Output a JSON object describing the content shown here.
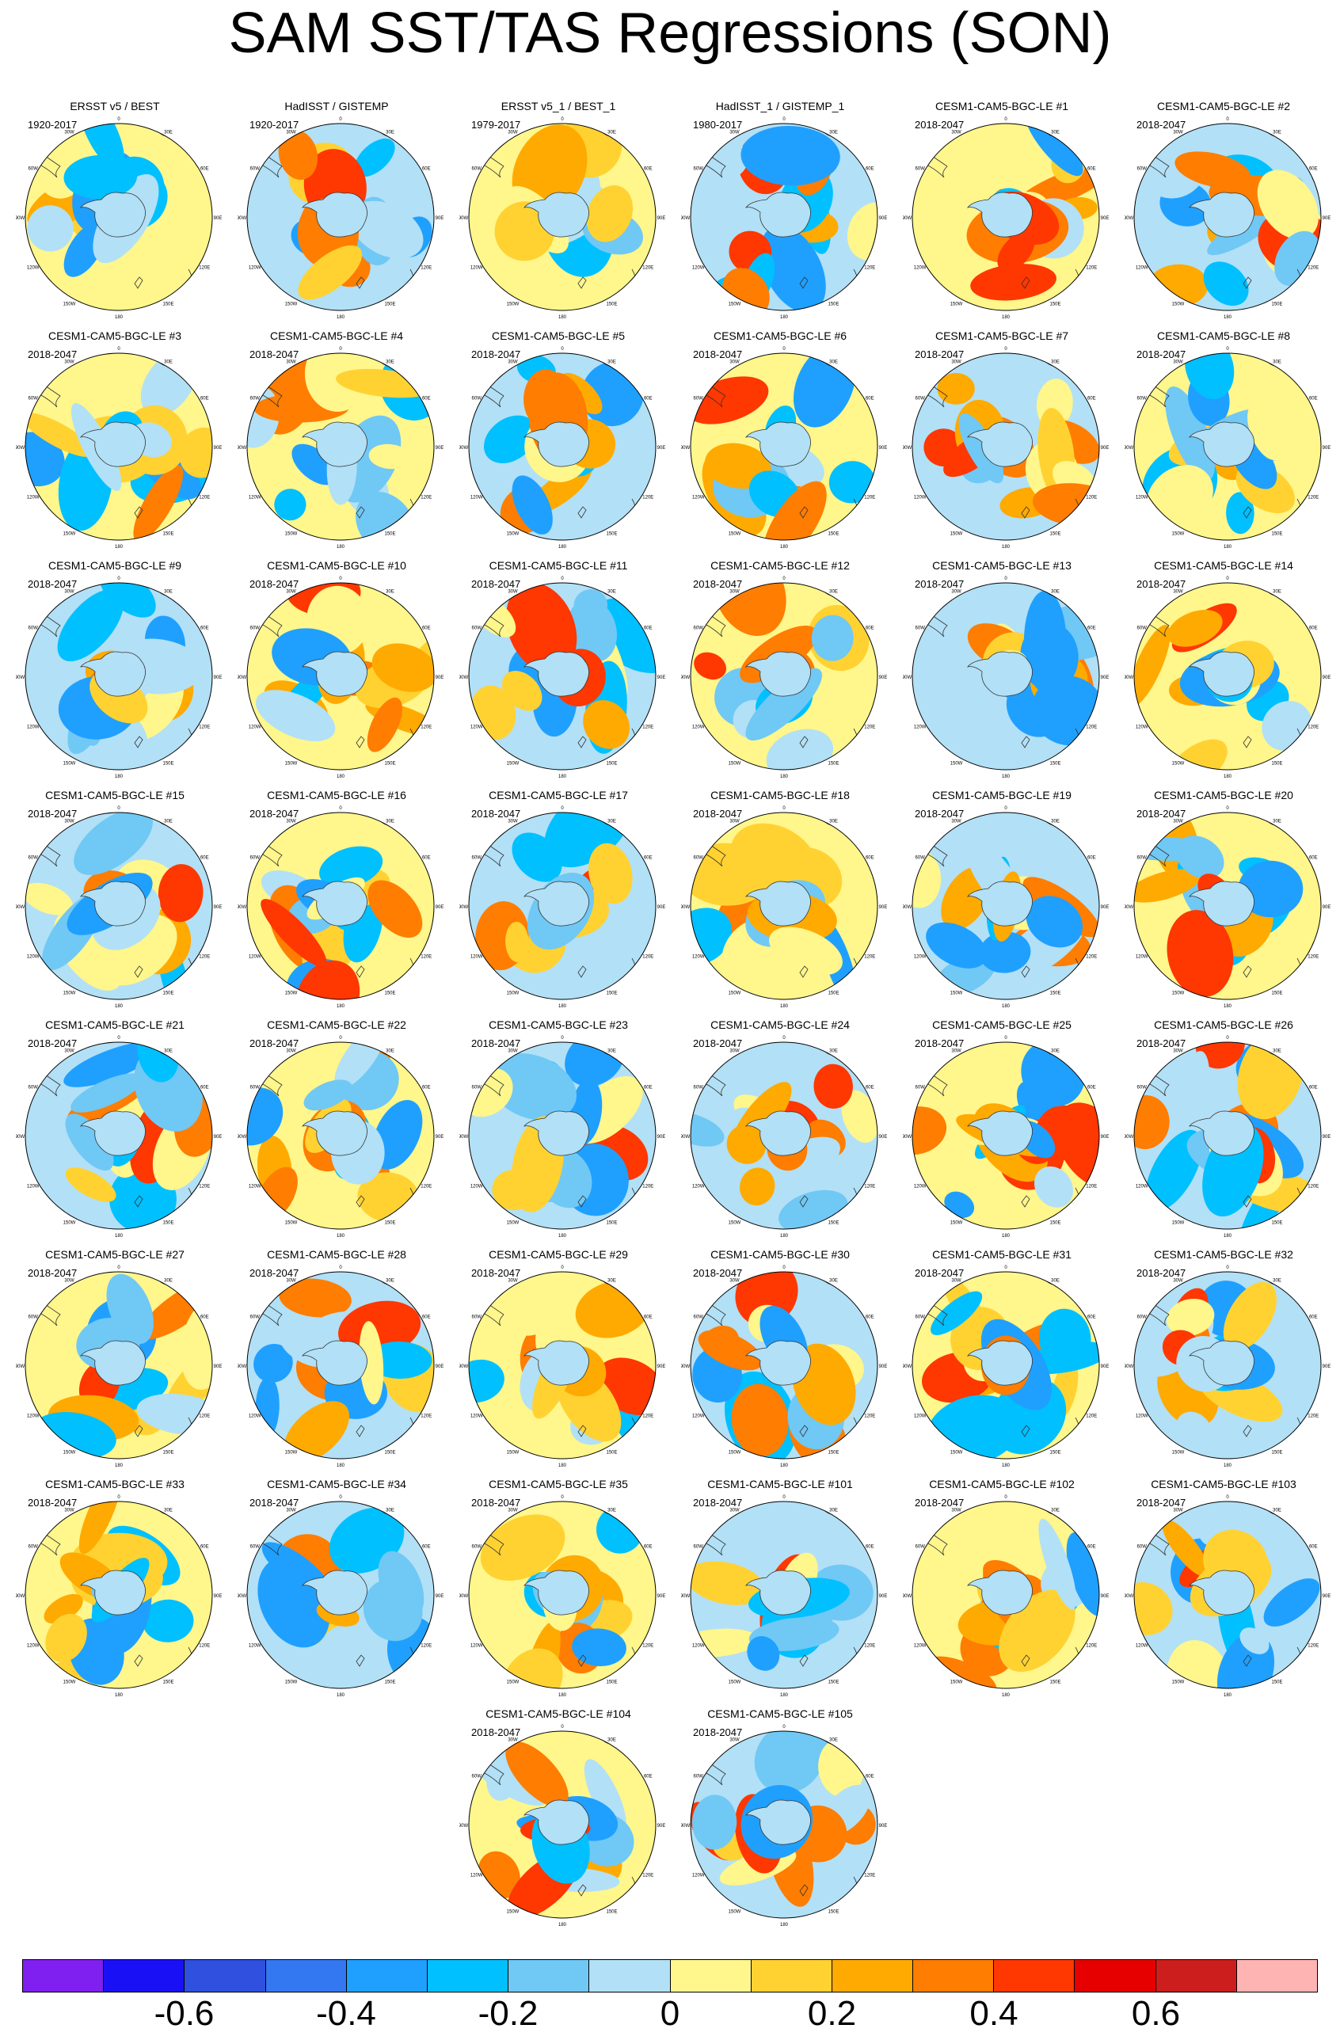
{
  "title": "SAM SST/TAS Regressions (SON)",
  "longitude_labels": [
    "0",
    "30E",
    "60E",
    "90E",
    "120E",
    "150E",
    "180",
    "150W",
    "120W",
    "90W",
    "60W",
    "30W"
  ],
  "panels": [
    {
      "title": "ERSST v5 / BEST",
      "period": "1920-2017"
    },
    {
      "title": "HadISST / GISTEMP",
      "period": "1920-2017"
    },
    {
      "title": "ERSST v5_1 / BEST_1",
      "period": "1979-2017"
    },
    {
      "title": "HadISST_1 / GISTEMP_1",
      "period": "1980-2017"
    },
    {
      "title": "CESM1-CAM5-BGC-LE #1",
      "period": "2018-2047"
    },
    {
      "title": "CESM1-CAM5-BGC-LE #2",
      "period": "2018-2047"
    },
    {
      "title": "CESM1-CAM5-BGC-LE #3",
      "period": "2018-2047"
    },
    {
      "title": "CESM1-CAM5-BGC-LE #4",
      "period": "2018-2047"
    },
    {
      "title": "CESM1-CAM5-BGC-LE #5",
      "period": "2018-2047"
    },
    {
      "title": "CESM1-CAM5-BGC-LE #6",
      "period": "2018-2047"
    },
    {
      "title": "CESM1-CAM5-BGC-LE #7",
      "period": "2018-2047"
    },
    {
      "title": "CESM1-CAM5-BGC-LE #8",
      "period": "2018-2047"
    },
    {
      "title": "CESM1-CAM5-BGC-LE #9",
      "period": "2018-2047"
    },
    {
      "title": "CESM1-CAM5-BGC-LE #10",
      "period": "2018-2047"
    },
    {
      "title": "CESM1-CAM5-BGC-LE #11",
      "period": "2018-2047"
    },
    {
      "title": "CESM1-CAM5-BGC-LE #12",
      "period": "2018-2047"
    },
    {
      "title": "CESM1-CAM5-BGC-LE #13",
      "period": "2018-2047"
    },
    {
      "title": "CESM1-CAM5-BGC-LE #14",
      "period": "2018-2047"
    },
    {
      "title": "CESM1-CAM5-BGC-LE #15",
      "period": "2018-2047"
    },
    {
      "title": "CESM1-CAM5-BGC-LE #16",
      "period": "2018-2047"
    },
    {
      "title": "CESM1-CAM5-BGC-LE #17",
      "period": "2018-2047"
    },
    {
      "title": "CESM1-CAM5-BGC-LE #18",
      "period": "2018-2047"
    },
    {
      "title": "CESM1-CAM5-BGC-LE #19",
      "period": "2018-2047"
    },
    {
      "title": "CESM1-CAM5-BGC-LE #20",
      "period": "2018-2047"
    },
    {
      "title": "CESM1-CAM5-BGC-LE #21",
      "period": "2018-2047"
    },
    {
      "title": "CESM1-CAM5-BGC-LE #22",
      "period": "2018-2047"
    },
    {
      "title": "CESM1-CAM5-BGC-LE #23",
      "period": "2018-2047"
    },
    {
      "title": "CESM1-CAM5-BGC-LE #24",
      "period": "2018-2047"
    },
    {
      "title": "CESM1-CAM5-BGC-LE #25",
      "period": "2018-2047"
    },
    {
      "title": "CESM1-CAM5-BGC-LE #26",
      "period": "2018-2047"
    },
    {
      "title": "CESM1-CAM5-BGC-LE #27",
      "period": "2018-2047"
    },
    {
      "title": "CESM1-CAM5-BGC-LE #28",
      "period": "2018-2047"
    },
    {
      "title": "CESM1-CAM5-BGC-LE #29",
      "period": "2018-2047"
    },
    {
      "title": "CESM1-CAM5-BGC-LE #30",
      "period": "2018-2047"
    },
    {
      "title": "CESM1-CAM5-BGC-LE #31",
      "period": "2018-2047"
    },
    {
      "title": "CESM1-CAM5-BGC-LE #32",
      "period": "2018-2047"
    },
    {
      "title": "CESM1-CAM5-BGC-LE #33",
      "period": "2018-2047"
    },
    {
      "title": "CESM1-CAM5-BGC-LE #34",
      "period": "2018-2047"
    },
    {
      "title": "CESM1-CAM5-BGC-LE #35",
      "period": "2018-2047"
    },
    {
      "title": "CESM1-CAM5-BGC-LE #101",
      "period": "2018-2047"
    },
    {
      "title": "CESM1-CAM5-BGC-LE #102",
      "period": "2018-2047"
    },
    {
      "title": "CESM1-CAM5-BGC-LE #103",
      "period": "2018-2047"
    },
    {
      "title": "CESM1-CAM5-BGC-LE #104",
      "period": "2018-2047"
    },
    {
      "title": "CESM1-CAM5-BGC-LE #105",
      "period": "2018-2047"
    }
  ],
  "colorbar": {
    "colors": [
      "#8020f0",
      "#1a10f5",
      "#3050e0",
      "#3378f0",
      "#1fa0ff",
      "#00c0ff",
      "#70c8f5",
      "#b2e0f6",
      "#fff68c",
      "#ffd232",
      "#ffaa00",
      "#ff7d00",
      "#ff3700",
      "#e60000",
      "#cd1e1e",
      "#ffb4b4"
    ],
    "labels": [
      "-0.6",
      "-0.4",
      "-0.2",
      "0",
      "0.2",
      "0.4",
      "0.6"
    ]
  }
}
